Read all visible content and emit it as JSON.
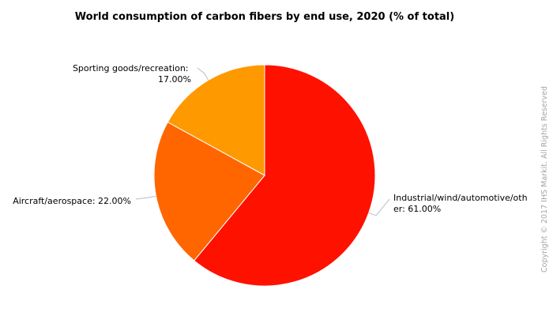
{
  "chart_data": {
    "type": "pie",
    "title": "World consumption of carbon fibers by end use, 2020 (% of total)",
    "unit": "% of total",
    "slices": [
      {
        "label": "Industrial/wind/automotive/other",
        "label_lines": [
          "Industrial/wind/automotive/oth",
          "er: 61.00%"
        ],
        "value": 61.0,
        "color": "#ff1100"
      },
      {
        "label": "Aircraft/aerospace",
        "label_lines": [
          "Aircraft/aerospace: 22.00%"
        ],
        "value": 22.0,
        "color": "#ff6600"
      },
      {
        "label": "Sporting goods/recreation",
        "label_lines": [
          "Sporting goods/recreation:",
          "17.00%"
        ],
        "value": 17.0,
        "color": "#ff9900"
      }
    ],
    "start_angle_deg": 0,
    "direction": "clockwise"
  },
  "credit": "Copyright © 2017 IHS Markit. All Rights Reserved"
}
